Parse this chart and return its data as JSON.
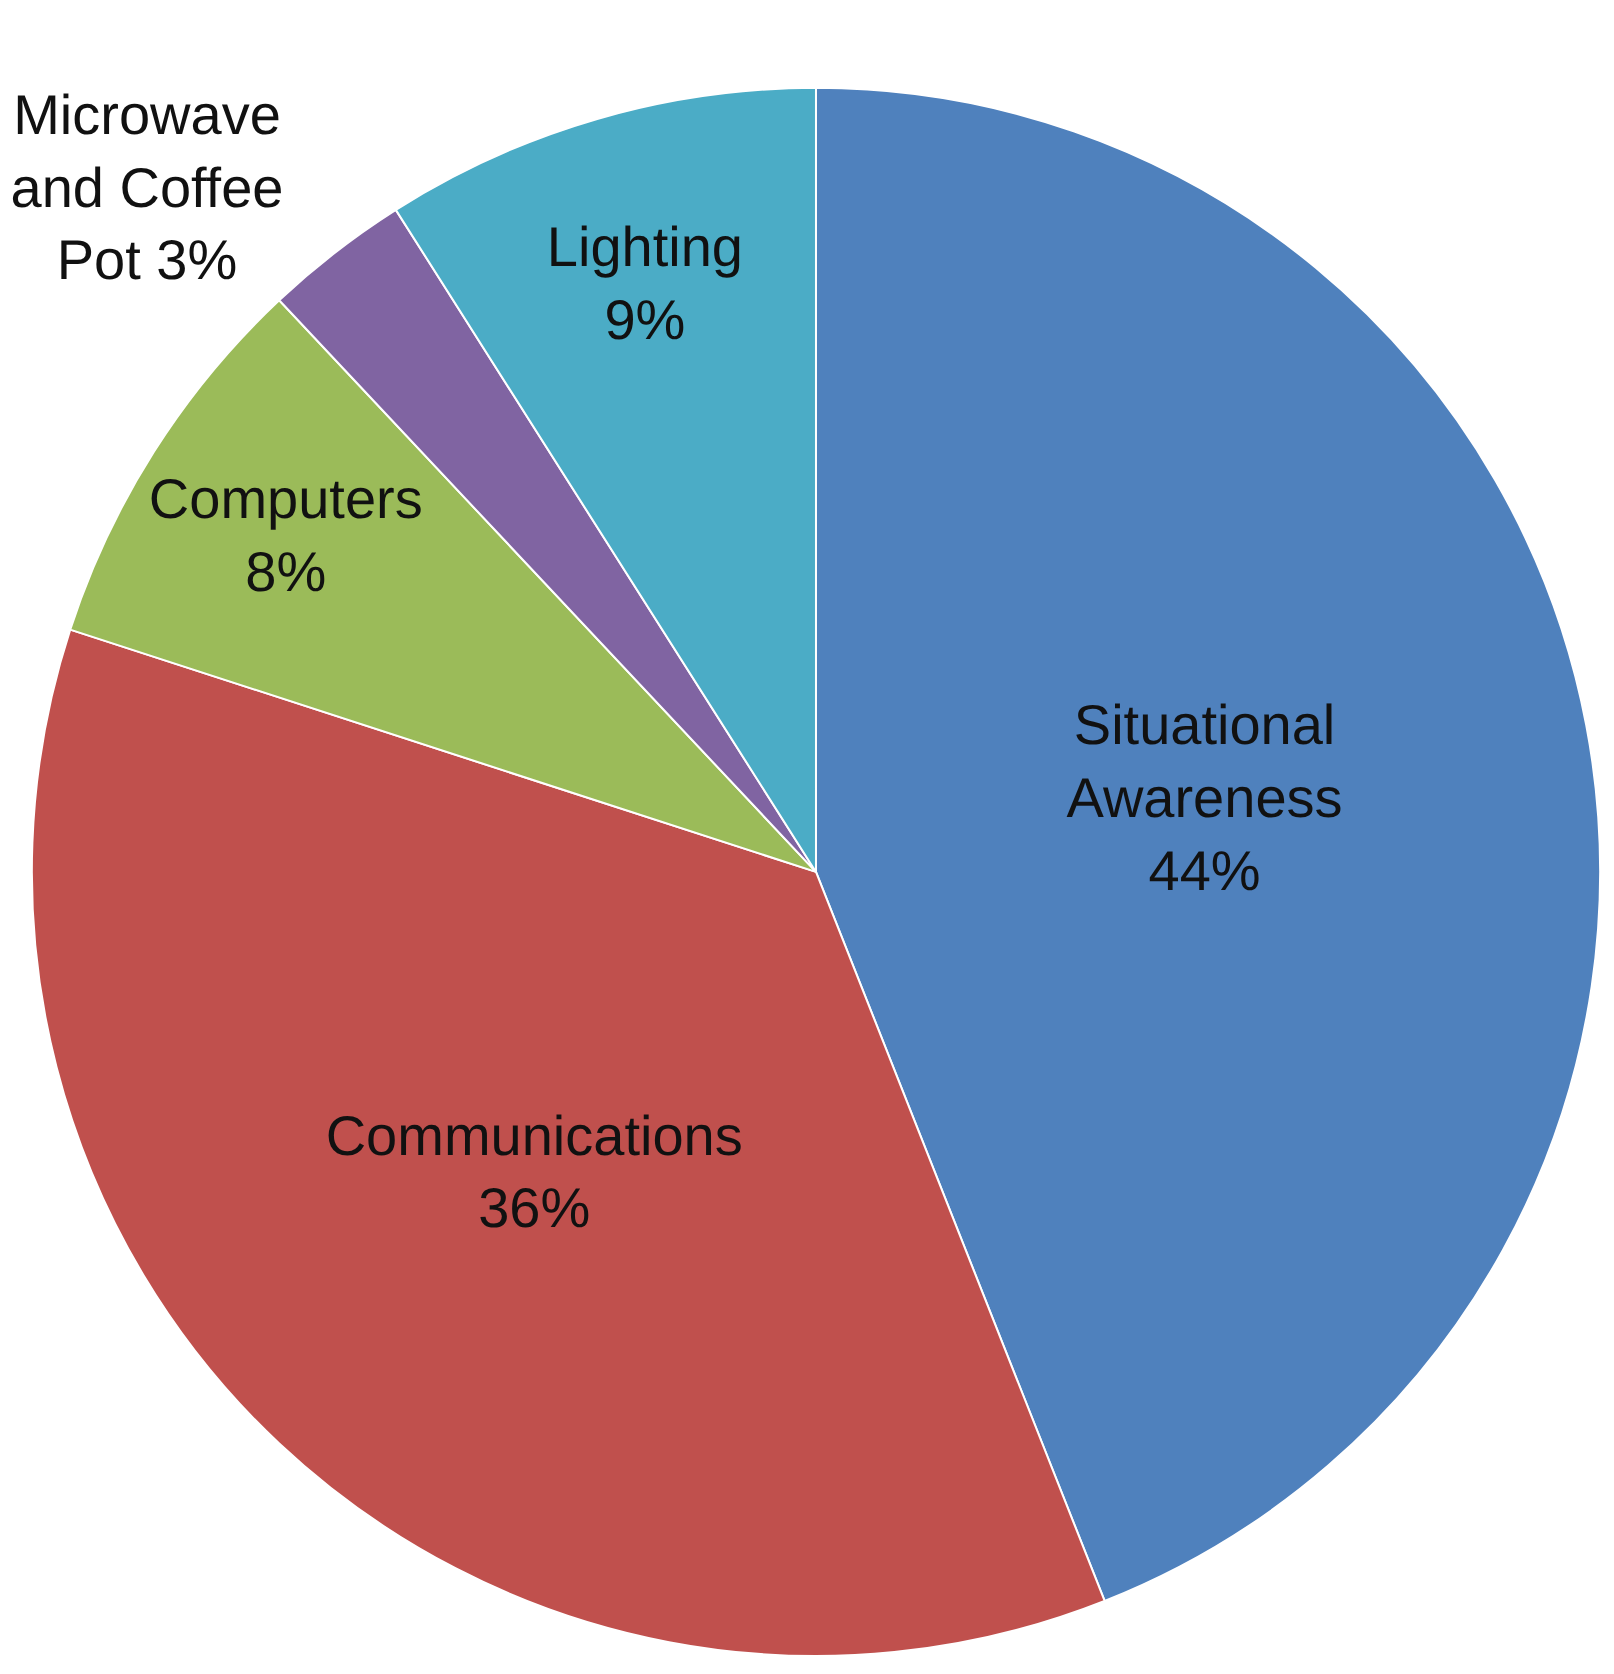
{
  "chart_data": {
    "type": "pie",
    "categories": [
      "Situational Awareness",
      "Communications",
      "Computers",
      "Microwave and Coffee Pot",
      "Lighting"
    ],
    "values": [
      44,
      36,
      8,
      3,
      9
    ],
    "value_labels": [
      "44%",
      "36%",
      "8%",
      "3%",
      "9%"
    ],
    "colors": [
      "#4f81bd",
      "#c0504d",
      "#9bbb59",
      "#8064a2",
      "#4bacc6"
    ],
    "legend": false
  }
}
